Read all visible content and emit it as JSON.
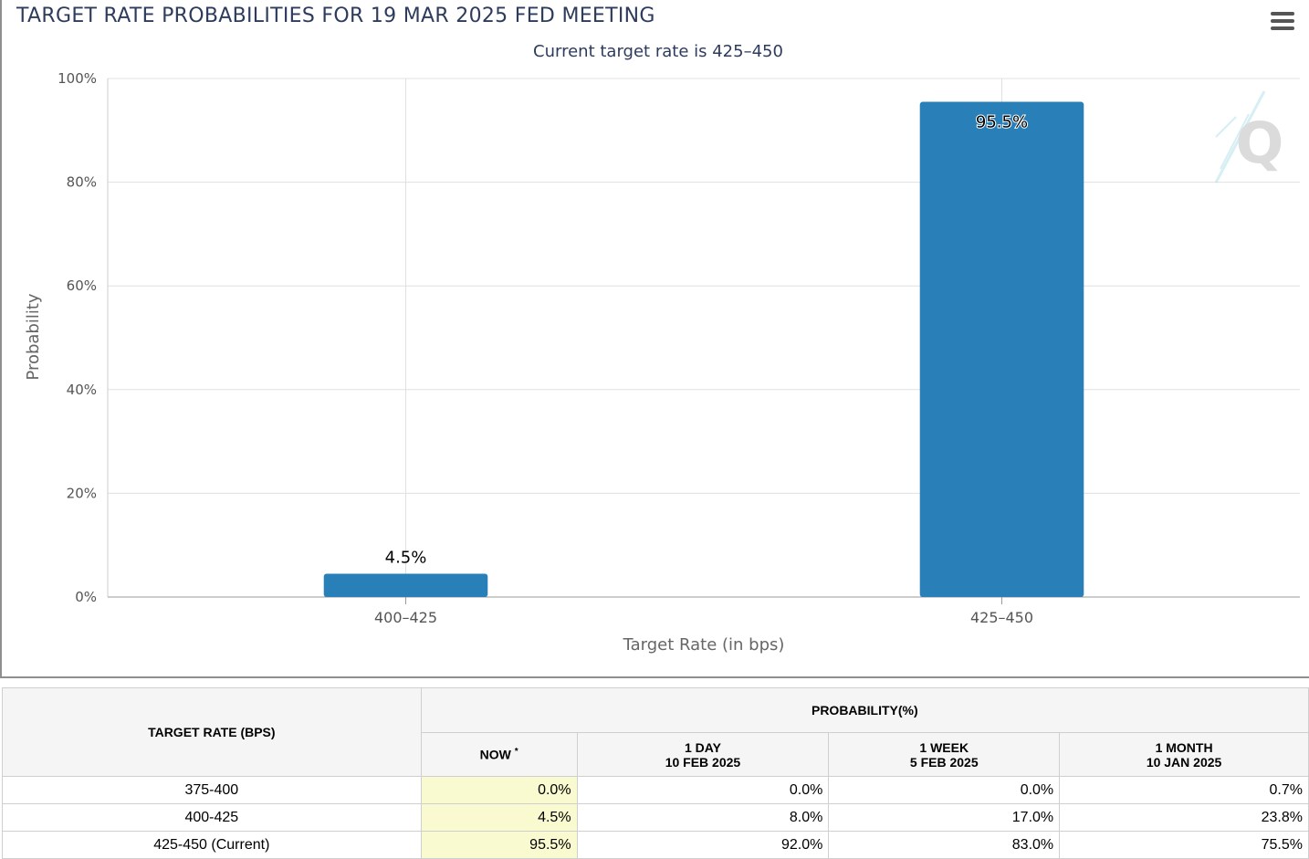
{
  "header": {
    "title": "TARGET RATE PROBABILITIES FOR 19 MAR 2025 FED MEETING",
    "menu_icon": "hamburger-menu-icon"
  },
  "chart_data": {
    "type": "bar",
    "subtitle": "Current target rate is 425–450",
    "categories": [
      "400–425",
      "425–450"
    ],
    "values": [
      4.5,
      95.5
    ],
    "data_labels": [
      "4.5%",
      "95.5%"
    ],
    "xlabel": "Target Rate (in bps)",
    "ylabel": "Probability",
    "ylim": [
      0,
      100
    ],
    "yticks": [
      0,
      20,
      40,
      60,
      80,
      100
    ],
    "ytick_labels": [
      "0%",
      "20%",
      "40%",
      "60%",
      "80%",
      "100%"
    ],
    "bar_color": "#2980b9",
    "grid": true,
    "watermark_icon": "q-logo-icon"
  },
  "table": {
    "target_rate_header": "TARGET RATE (BPS)",
    "probability_header": "PROBABILITY(%)",
    "now_header": "NOW",
    "now_marker": "*",
    "columns": [
      {
        "line1": "1 DAY",
        "line2": "10 FEB 2025"
      },
      {
        "line1": "1 WEEK",
        "line2": "5 FEB 2025"
      },
      {
        "line1": "1 MONTH",
        "line2": "10 JAN 2025"
      }
    ],
    "rows": [
      {
        "rate": "375-400",
        "now": "0.0%",
        "d1": "0.0%",
        "w1": "0.0%",
        "m1": "0.7%"
      },
      {
        "rate": "400-425",
        "now": "4.5%",
        "d1": "8.0%",
        "w1": "17.0%",
        "m1": "23.8%"
      },
      {
        "rate": "425-450 (Current)",
        "now": "95.5%",
        "d1": "92.0%",
        "w1": "83.0%",
        "m1": "75.5%"
      }
    ],
    "now_highlight_color": "#fafad0"
  }
}
